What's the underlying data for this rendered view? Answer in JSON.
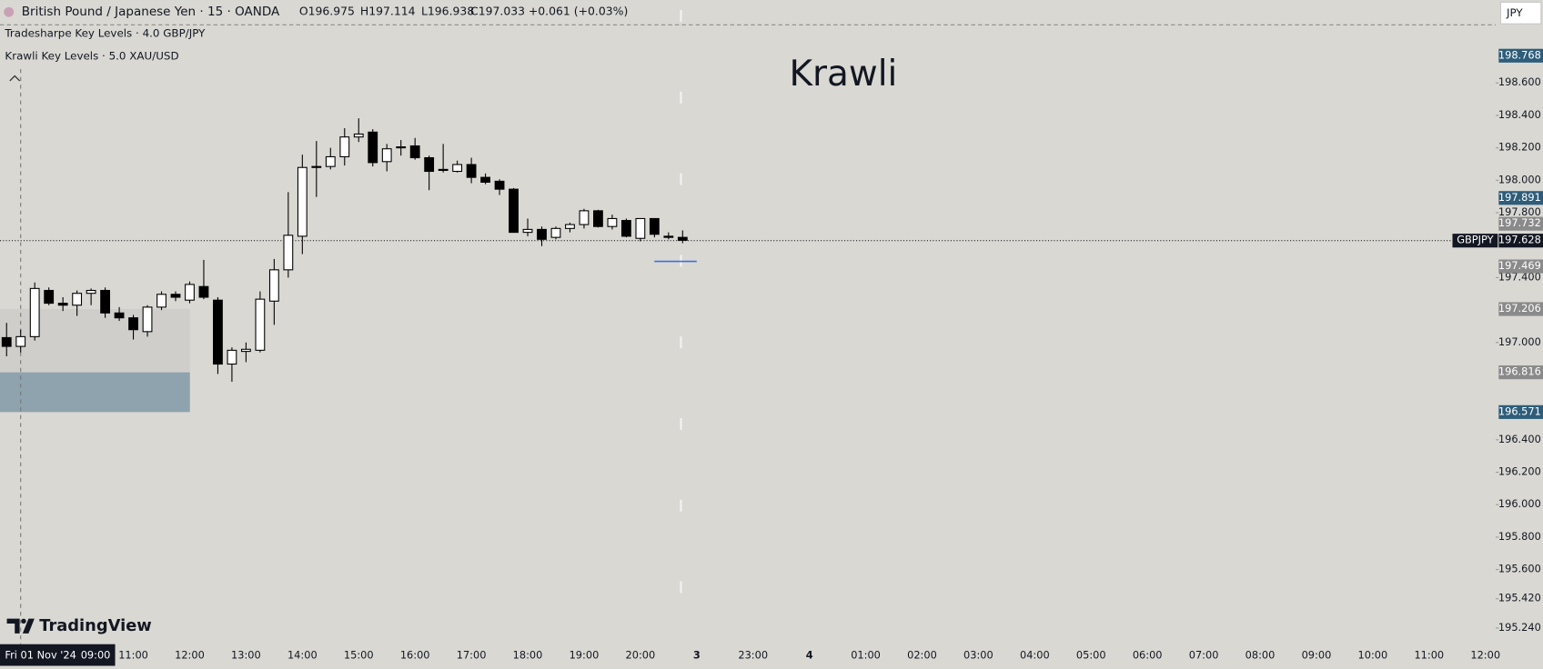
{
  "header": {
    "symbol": "British Pound / Japanese Yen · 15 · OANDA",
    "open": "O196.975",
    "high": "H197.114",
    "low": "L196.938",
    "close": "C197.033",
    "change": "+0.061 (+0.03%)",
    "indicators": [
      "Tradesharpe Key Levels · 4.0 GBP/JPY",
      "Krawli Key Levels · 5.0 XAU/USD"
    ],
    "currency": "JPY"
  },
  "watermark": "Krawli",
  "logo": "TradingView",
  "chart_data": {
    "type": "candlestick",
    "up_color": "#ffffff",
    "down_color": "#000000",
    "open": [
      197.03,
      196.976,
      197.036,
      197.321,
      197.242,
      197.23,
      197.303,
      197.321,
      197.182,
      197.152,
      197.067,
      197.218,
      197.297,
      197.261,
      197.345,
      197.261,
      196.867,
      196.945,
      196.952,
      197.255,
      197.448,
      197.655,
      198.079,
      198.085,
      198.145,
      198.267,
      198.297,
      198.115,
      198.2,
      198.212,
      198.139,
      198.067,
      198.055,
      198.097,
      198.018,
      197.994,
      197.945,
      197.679,
      197.697,
      197.648,
      197.703,
      197.727,
      197.812,
      197.715,
      197.752,
      197.642,
      197.764,
      197.655,
      197.648
    ],
    "high": [
      197.121,
      197.079,
      197.37,
      197.339,
      197.279,
      197.321,
      197.333,
      197.339,
      197.218,
      197.17,
      197.23,
      197.315,
      197.315,
      197.376,
      197.509,
      197.279,
      196.97,
      197.0,
      197.315,
      197.515,
      197.927,
      198.158,
      198.242,
      198.2,
      198.321,
      198.382,
      198.315,
      198.224,
      198.248,
      198.261,
      198.152,
      198.224,
      198.121,
      198.139,
      198.042,
      198.006,
      197.952,
      197.764,
      197.715,
      197.715,
      197.739,
      197.824,
      197.818,
      197.788,
      197.764,
      197.764,
      197.764,
      197.679,
      197.691
    ],
    "low": [
      196.915,
      196.939,
      197.012,
      197.23,
      197.194,
      197.164,
      197.23,
      197.152,
      197.133,
      197.018,
      197.036,
      197.2,
      197.255,
      197.242,
      197.267,
      196.806,
      196.758,
      196.879,
      196.939,
      197.109,
      197.4,
      197.545,
      197.897,
      198.067,
      198.091,
      198.236,
      198.085,
      198.055,
      198.152,
      198.127,
      197.939,
      198.048,
      198.048,
      197.982,
      197.976,
      197.909,
      197.679,
      197.655,
      197.594,
      197.636,
      197.679,
      197.703,
      197.709,
      197.697,
      197.648,
      197.624,
      197.648,
      197.636,
      197.612
    ],
    "close": [
      196.976,
      197.036,
      197.333,
      197.242,
      197.23,
      197.303,
      197.321,
      197.182,
      197.152,
      197.079,
      197.218,
      197.297,
      197.279,
      197.358,
      197.279,
      196.867,
      196.952,
      196.958,
      197.267,
      197.448,
      197.661,
      198.079,
      198.085,
      198.145,
      198.267,
      198.285,
      198.109,
      198.194,
      198.206,
      198.139,
      198.055,
      198.061,
      198.097,
      198.018,
      197.988,
      197.945,
      197.679,
      197.697,
      197.636,
      197.703,
      197.727,
      197.812,
      197.715,
      197.764,
      197.655,
      197.764,
      197.667,
      197.648,
      197.63
    ],
    "ylim": [
      195.14,
      199.11
    ],
    "yticks": [
      {
        "value": 195.24,
        "label": "195.240"
      },
      {
        "value": 195.42,
        "label": "195.420"
      },
      {
        "value": 195.6,
        "label": "195.600"
      },
      {
        "value": 195.8,
        "label": "195.800"
      },
      {
        "value": 196.0,
        "label": "196.000"
      },
      {
        "value": 196.2,
        "label": "196.200"
      },
      {
        "value": 196.4,
        "label": "196.400"
      },
      {
        "value": 197.0,
        "label": "197.000"
      },
      {
        "value": 197.4,
        "label": "197.400"
      },
      {
        "value": 197.8,
        "label": "197.800"
      },
      {
        "value": 198.0,
        "label": "198.000"
      },
      {
        "value": 198.2,
        "label": "198.200"
      },
      {
        "value": 198.4,
        "label": "198.400"
      },
      {
        "value": 198.6,
        "label": "198.600"
      }
    ],
    "x_labels": [
      null,
      null,
      "11:00",
      "12:00",
      "13:00",
      "14:00",
      "15:00",
      "16:00",
      "17:00",
      "18:00",
      "19:00",
      "20:00",
      "3",
      "23:00",
      "4",
      "01:00",
      "02:00",
      "03:00",
      "04:00",
      "05:00",
      "06:00",
      "07:00",
      "08:00",
      "09:00",
      "10:00",
      "11:00",
      "12:00"
    ],
    "crosshair": {
      "date": "Fri 01 Nov '24",
      "time": "09:00"
    },
    "price_levels": [
      {
        "value": 198.768,
        "color": "#2e5d7a"
      },
      {
        "value": 197.891,
        "color": "#2e5d7a"
      },
      {
        "value": 197.732,
        "color": "#8a8a8a"
      },
      {
        "value": 197.469,
        "color": "#8a8a8a"
      },
      {
        "value": 197.206,
        "color": "#8a8a8a"
      },
      {
        "value": 196.816,
        "color": "#8a8a8a"
      },
      {
        "value": 196.571,
        "color": "#2e5d7a"
      }
    ],
    "current_name": "GBPJPY",
    "current_price": 197.628,
    "zones": [
      {
        "from": 197.206,
        "to": 196.816,
        "color": "#cfcecb"
      },
      {
        "from": 196.816,
        "to": 196.571,
        "color": "#8ea3ad"
      }
    ],
    "marker_line": {
      "value": 197.5,
      "color": "#3b6fe0"
    }
  }
}
